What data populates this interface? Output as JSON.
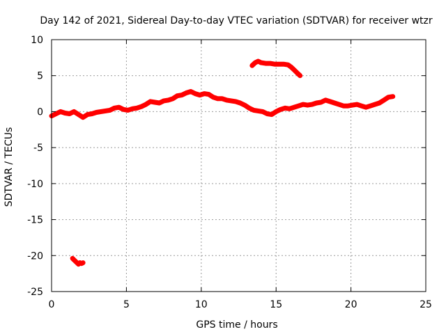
{
  "chart_data": {
    "type": "scatter",
    "title": "Day 142 of 2021, Sidereal Day-to-day VTEC variation (SDTVAR) for receiver wtzr",
    "xlabel": "GPS time / hours",
    "ylabel": "SDTVAR / TECUs",
    "xlim": [
      0,
      25
    ],
    "ylim": [
      -25,
      10
    ],
    "x_ticks": [
      0,
      5,
      10,
      15,
      20,
      25
    ],
    "y_ticks": [
      -25,
      -20,
      -15,
      -10,
      -5,
      0,
      5,
      10
    ],
    "x_tick_labels": [
      "0",
      "5",
      "10",
      "15",
      "20",
      "25"
    ],
    "y_tick_labels": [
      "-25",
      "-20",
      "-15",
      "-10",
      "-5",
      "0",
      "5",
      "10"
    ],
    "grid": true,
    "series_color": "#ff0000",
    "series": [
      {
        "name": "main trace",
        "x": [
          0.0,
          0.3,
          0.6,
          0.9,
          1.2,
          1.5,
          1.8,
          2.1,
          2.4,
          2.7,
          3.0,
          3.3,
          3.6,
          3.9,
          4.2,
          4.5,
          4.8,
          5.1,
          5.4,
          5.7,
          6.0,
          6.3,
          6.6,
          6.9,
          7.2,
          7.5,
          7.8,
          8.1,
          8.4,
          8.7,
          9.0,
          9.3,
          9.6,
          9.9,
          10.2,
          10.5,
          10.8,
          11.1,
          11.4,
          11.7,
          12.0,
          12.3,
          12.6,
          12.9,
          13.2,
          13.5,
          13.8,
          14.1,
          14.4,
          14.7,
          15.0,
          15.3,
          15.6,
          15.9,
          16.2,
          16.5,
          16.8,
          17.1,
          17.4,
          17.7,
          18.0,
          18.3,
          18.6,
          18.9,
          19.2,
          19.5,
          19.8,
          20.1,
          20.4,
          20.7,
          21.0,
          21.3,
          21.6,
          21.9,
          22.2,
          22.5,
          22.8
        ],
        "y": [
          -0.6,
          -0.3,
          0.0,
          -0.2,
          -0.3,
          0.0,
          -0.4,
          -0.8,
          -0.4,
          -0.3,
          -0.1,
          0.0,
          0.1,
          0.2,
          0.5,
          0.6,
          0.3,
          0.2,
          0.4,
          0.5,
          0.7,
          1.0,
          1.4,
          1.3,
          1.2,
          1.5,
          1.6,
          1.8,
          2.2,
          2.3,
          2.6,
          2.8,
          2.5,
          2.3,
          2.5,
          2.4,
          2.0,
          1.8,
          1.8,
          1.6,
          1.5,
          1.4,
          1.2,
          0.9,
          0.5,
          0.2,
          0.1,
          0.0,
          -0.3,
          -0.4,
          0.0,
          0.3,
          0.5,
          0.4,
          0.6,
          0.8,
          1.0,
          0.9,
          1.0,
          1.2,
          1.3,
          1.6,
          1.4,
          1.2,
          1.0,
          0.8,
          0.8,
          0.9,
          1.0,
          0.8,
          0.6,
          0.8,
          1.0,
          1.2,
          1.6,
          2.0,
          2.1
        ]
      },
      {
        "name": "raised segment",
        "x": [
          13.4,
          13.6,
          13.8,
          14.0,
          14.3,
          14.6,
          14.9,
          15.2,
          15.5,
          15.8,
          16.0,
          16.2,
          16.4,
          16.6
        ],
        "y": [
          6.4,
          6.8,
          7.0,
          6.8,
          6.7,
          6.7,
          6.6,
          6.6,
          6.6,
          6.5,
          6.2,
          5.8,
          5.4,
          5.0
        ]
      },
      {
        "name": "low segment",
        "x": [
          1.4,
          1.5,
          1.6,
          1.7,
          1.8,
          1.9,
          2.0,
          2.1
        ],
        "y": [
          -20.4,
          -20.6,
          -20.8,
          -21.0,
          -21.2,
          -21.0,
          -21.1,
          -21.0
        ]
      }
    ]
  }
}
